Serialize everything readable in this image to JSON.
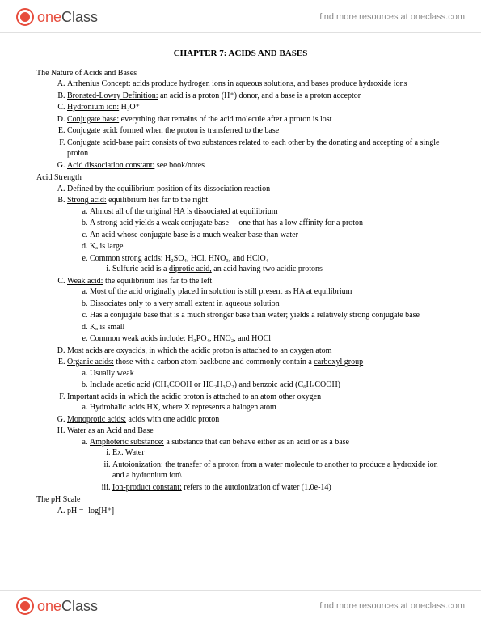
{
  "brand": {
    "one": "one",
    "class": "Class"
  },
  "header_link": "find more resources at oneclass.com",
  "footer_link": "find more resources at oneclass.com",
  "title": "CHAPTER 7: ACIDS AND BASES",
  "sec1": {
    "head": "The Nature of Acids and Bases",
    "A": {
      "term": "Arrhenius Concept:",
      "text": " acids produce hydrogen ions in aqueous solutions, and bases produce hydroxide ions"
    },
    "B": {
      "term": "Bronsted-Lowry Definition:",
      "text": " an acid is a proton (H⁺) donor, and a base is a proton acceptor"
    },
    "C": {
      "term": "Hydronium ion:",
      "text": " H₃O⁺"
    },
    "D": {
      "term": "Conjugate base:",
      "text": " everything that remains of the acid molecule after a proton is lost"
    },
    "E": {
      "term": "Conjugate acid:",
      "text": " formed when the proton is transferred to the base"
    },
    "F": {
      "term": "Conjugate acid-base pair:",
      "text": " consists of two substances related to each other by the donating and accepting of a single proton"
    },
    "G": {
      "term": "Acid dissociation constant:",
      "text": " see book/notes"
    }
  },
  "sec2": {
    "head": "Acid Strength",
    "A": "Defined by the equilibrium position of its dissociation reaction",
    "B": {
      "term": "Strong acid:",
      "text": " equilibrium lies far to the right",
      "a": "Almost all of the original HA is dissociated at equilibrium",
      "b": "A strong acid yields a weak conjugate base —one that has a low affinity for a proton",
      "c": "An acid whose conjugate base is a much weaker base than water",
      "d": "Kₐ is large",
      "e": "Common strong acids: H₂SO₄, HCl, HNO₃, and HClO₄",
      "e_i_pre": "Sulfuric acid is a ",
      "e_i_term": "diprotic acid,",
      "e_i_post": " an acid having two acidic protons"
    },
    "C": {
      "term": "Weak acid:",
      "text": " the equilibrium lies far to the left",
      "a": "Most of the acid originally placed in solution is still present as HA at equilibrium",
      "b": "Dissociates only to a very small extent in aqueous solution",
      "c": "Has a conjugate base that is a much stronger base than water; yields a relatively strong conjugate base",
      "d": "Kₐ is small",
      "e": "Common weak acids include: H₃PO₄, HNO₂, and HOCl"
    },
    "D": {
      "pre": "Most acids are ",
      "term": "oxyacids,",
      "post": " in which the acidic proton is attached to an oxygen atom"
    },
    "E": {
      "term": "Organic acids:",
      "mid": " those with a carbon atom backbone and commonly contain a ",
      "term2": "carboxyl group",
      "a": "Usually weak",
      "b": "Include acetic acid (CH₃COOH or HC₂H₃O₂) and benzoic acid (C₆H₅COOH)"
    },
    "F": {
      "text": "Important acids in which the acidic proton is attached to an atom other oxygen",
      "a": "Hydrohalic acids HX, where X represents a halogen atom"
    },
    "G": {
      "term": "Monoprotic acids:",
      "text": " acids with one acidic proton"
    },
    "H": {
      "text": "Water as an Acid and Base",
      "a_term": "Amphoteric substance:",
      "a_text": " a substance that can behave either as an acid or as a base",
      "a_i": "Ex. Water",
      "a_ii_term": "Autoionization:",
      "a_ii_text": " the transfer of a proton from a water molecule to another to produce a hydroxide ion and a hydronium ion\\",
      "a_iii_term": "Ion-product constant:",
      "a_iii_text": " refers to the autoionization of water (1.0e-14)"
    }
  },
  "sec3": {
    "head": "The pH Scale",
    "A": "pH = -log[H⁺]"
  }
}
